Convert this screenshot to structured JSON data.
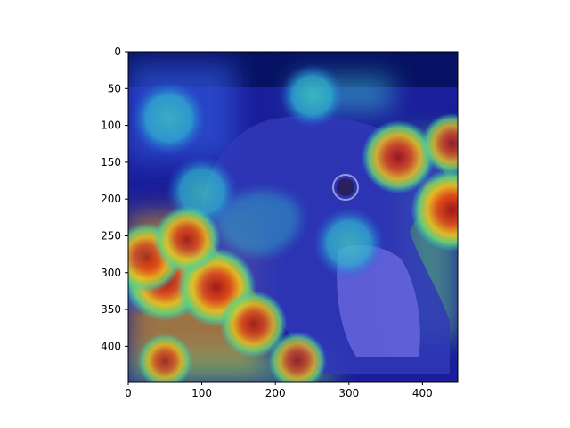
{
  "chart_data": {
    "type": "heatmap",
    "title": "",
    "xlabel": "",
    "ylabel": "",
    "xlim": [
      0,
      448
    ],
    "ylim": [
      448,
      0
    ],
    "y_inverted": true,
    "x_ticks": [
      0,
      100,
      200,
      300,
      400
    ],
    "y_ticks": [
      0,
      50,
      100,
      150,
      200,
      250,
      300,
      350,
      400
    ],
    "grid": false,
    "legend": "none",
    "colormap": "jet",
    "image_content": "close-up of a bird's head with a Grad-CAM style heatmap overlay",
    "colors": {
      "background": "#000080",
      "low": "#1e2fd6",
      "mid": "#28c8c8",
      "high": "#d83018",
      "bird_shade": "#3a3ab8"
    },
    "hotspots": [
      {
        "x": 50,
        "y": 310,
        "intensity": 0.95
      },
      {
        "x": 120,
        "y": 320,
        "intensity": 0.9
      },
      {
        "x": 25,
        "y": 280,
        "intensity": 0.75
      },
      {
        "x": 170,
        "y": 370,
        "intensity": 0.7
      },
      {
        "x": 80,
        "y": 255,
        "intensity": 0.7
      },
      {
        "x": 440,
        "y": 215,
        "intensity": 0.95
      },
      {
        "x": 367,
        "y": 143,
        "intensity": 0.8
      },
      {
        "x": 440,
        "y": 125,
        "intensity": 0.6
      },
      {
        "x": 230,
        "y": 420,
        "intensity": 0.55
      },
      {
        "x": 50,
        "y": 420,
        "intensity": 0.5
      }
    ],
    "cool_regions": [
      {
        "x": 55,
        "y": 90,
        "intensity": 0.55
      },
      {
        "x": 300,
        "y": 260,
        "intensity": 0.5
      },
      {
        "x": 100,
        "y": 190,
        "intensity": 0.5
      },
      {
        "x": 250,
        "y": 60,
        "intensity": 0.4
      },
      {
        "x": 10,
        "y": 305,
        "intensity": 0.6
      },
      {
        "x": 80,
        "y": 303,
        "intensity": 0.55
      }
    ]
  }
}
